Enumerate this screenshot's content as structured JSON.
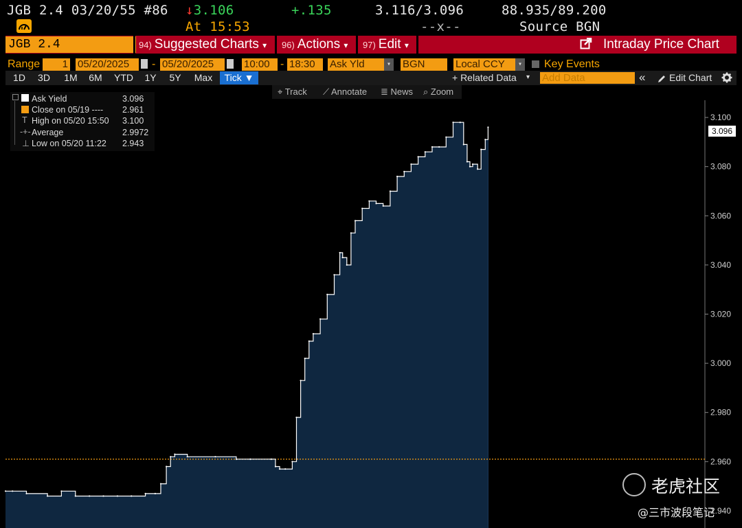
{
  "header": {
    "security": "JGB 2.4 03/20/55 #86",
    "last_arrow": "↓",
    "last_value": "3.106",
    "change": "+.135",
    "bid_ask_yield": "3.116/3.096",
    "bid_ask_price": "88.935/89.200",
    "at_label": "At 15:53",
    "separator": "--x--",
    "source": "Source BGN"
  },
  "menubar": {
    "ticker": "JGB 2.4 03/20/2055",
    "suggested_num": "94)",
    "suggested_label": "Suggested Charts",
    "actions_num": "96)",
    "actions_label": "Actions",
    "edit_num": "97)",
    "edit_label": "Edit",
    "dropdown_glyph": "▾",
    "title": "Intraday Price Chart"
  },
  "range_row": {
    "range_label": "Range",
    "range_value": "1",
    "start_date": "05/20/2025",
    "dash": "-",
    "end_date": "05/20/2025",
    "start_time": "10:00",
    "end_time": "18:30",
    "field": "Ask Yld",
    "source": "BGN",
    "currency": "Local CCY",
    "key_events": "Key Events"
  },
  "period_row": {
    "periods": [
      "1D",
      "3D",
      "1M",
      "6M",
      "YTD",
      "1Y",
      "5Y",
      "Max"
    ],
    "tick": "Tick ▼",
    "related_data": "+ Related Data",
    "add_data_placeholder": "Add Data",
    "collapse": "«",
    "edit_chart": "Edit Chart"
  },
  "tools": {
    "track": "Track",
    "annotate": "Annotate",
    "news": "News",
    "zoom": "Zoom"
  },
  "legend": {
    "rows": [
      {
        "label": "Ask Yield",
        "value": "3.096"
      },
      {
        "label": "Close on 05/19 ----",
        "value": "2.961"
      },
      {
        "label": "High on 05/20 15:50",
        "value": "3.100"
      },
      {
        "label": "Average",
        "value": "2.9972"
      },
      {
        "label": "Low on 05/20 11:22",
        "value": "2.943"
      }
    ]
  },
  "watermark": {
    "brand": "老虎社区",
    "handle": "@三市波段笔记"
  },
  "colors": {
    "area_fill": "#0f2740",
    "line": "#ffffff",
    "close_line": "#f39c12",
    "menu_red": "#b0001f",
    "amber": "#f7a600"
  },
  "chart_data": {
    "type": "area",
    "ylim": [
      2.933,
      3.107
    ],
    "ytick_values": [
      2.94,
      2.96,
      2.98,
      3.0,
      3.02,
      3.04,
      3.06,
      3.08,
      3.1
    ],
    "ytick_labels": [
      "2.940",
      "2.960",
      "2.980",
      "3.000",
      "3.020",
      "3.040",
      "3.060",
      "3.080",
      "3.100"
    ],
    "current_value_tag": "3.096",
    "prior_close": 2.961,
    "series": [
      {
        "name": "Ask Yield",
        "x_fraction_of_session": [
          0.0,
          0.01,
          0.03,
          0.06,
          0.08,
          0.1,
          0.12,
          0.14,
          0.16,
          0.18,
          0.2,
          0.214,
          0.222,
          0.23,
          0.236,
          0.242,
          0.26,
          0.3,
          0.33,
          0.35,
          0.38,
          0.386,
          0.392,
          0.4,
          0.41,
          0.416,
          0.422,
          0.428,
          0.434,
          0.44,
          0.45,
          0.46,
          0.47,
          0.478,
          0.482,
          0.488,
          0.494,
          0.5,
          0.51,
          0.52,
          0.53,
          0.54,
          0.55,
          0.56,
          0.57,
          0.58,
          0.59,
          0.6,
          0.61,
          0.62,
          0.63,
          0.64,
          0.65,
          0.655,
          0.66,
          0.664,
          0.668,
          0.675,
          0.68,
          0.686,
          0.69
        ],
        "values": [
          2.948,
          2.948,
          2.947,
          2.946,
          2.948,
          2.946,
          2.946,
          2.946,
          2.946,
          2.946,
          2.947,
          2.947,
          2.951,
          2.958,
          2.962,
          2.963,
          2.962,
          2.962,
          2.961,
          2.961,
          2.961,
          2.958,
          2.957,
          2.957,
          2.96,
          2.978,
          2.993,
          3.002,
          3.009,
          3.012,
          3.018,
          3.028,
          3.036,
          3.045,
          3.043,
          3.04,
          3.053,
          3.058,
          3.063,
          3.066,
          3.065,
          3.064,
          3.07,
          3.076,
          3.078,
          3.081,
          3.084,
          3.086,
          3.088,
          3.088,
          3.092,
          3.098,
          3.098,
          3.089,
          3.082,
          3.08,
          3.081,
          3.079,
          3.087,
          3.091,
          3.096
        ]
      }
    ]
  }
}
